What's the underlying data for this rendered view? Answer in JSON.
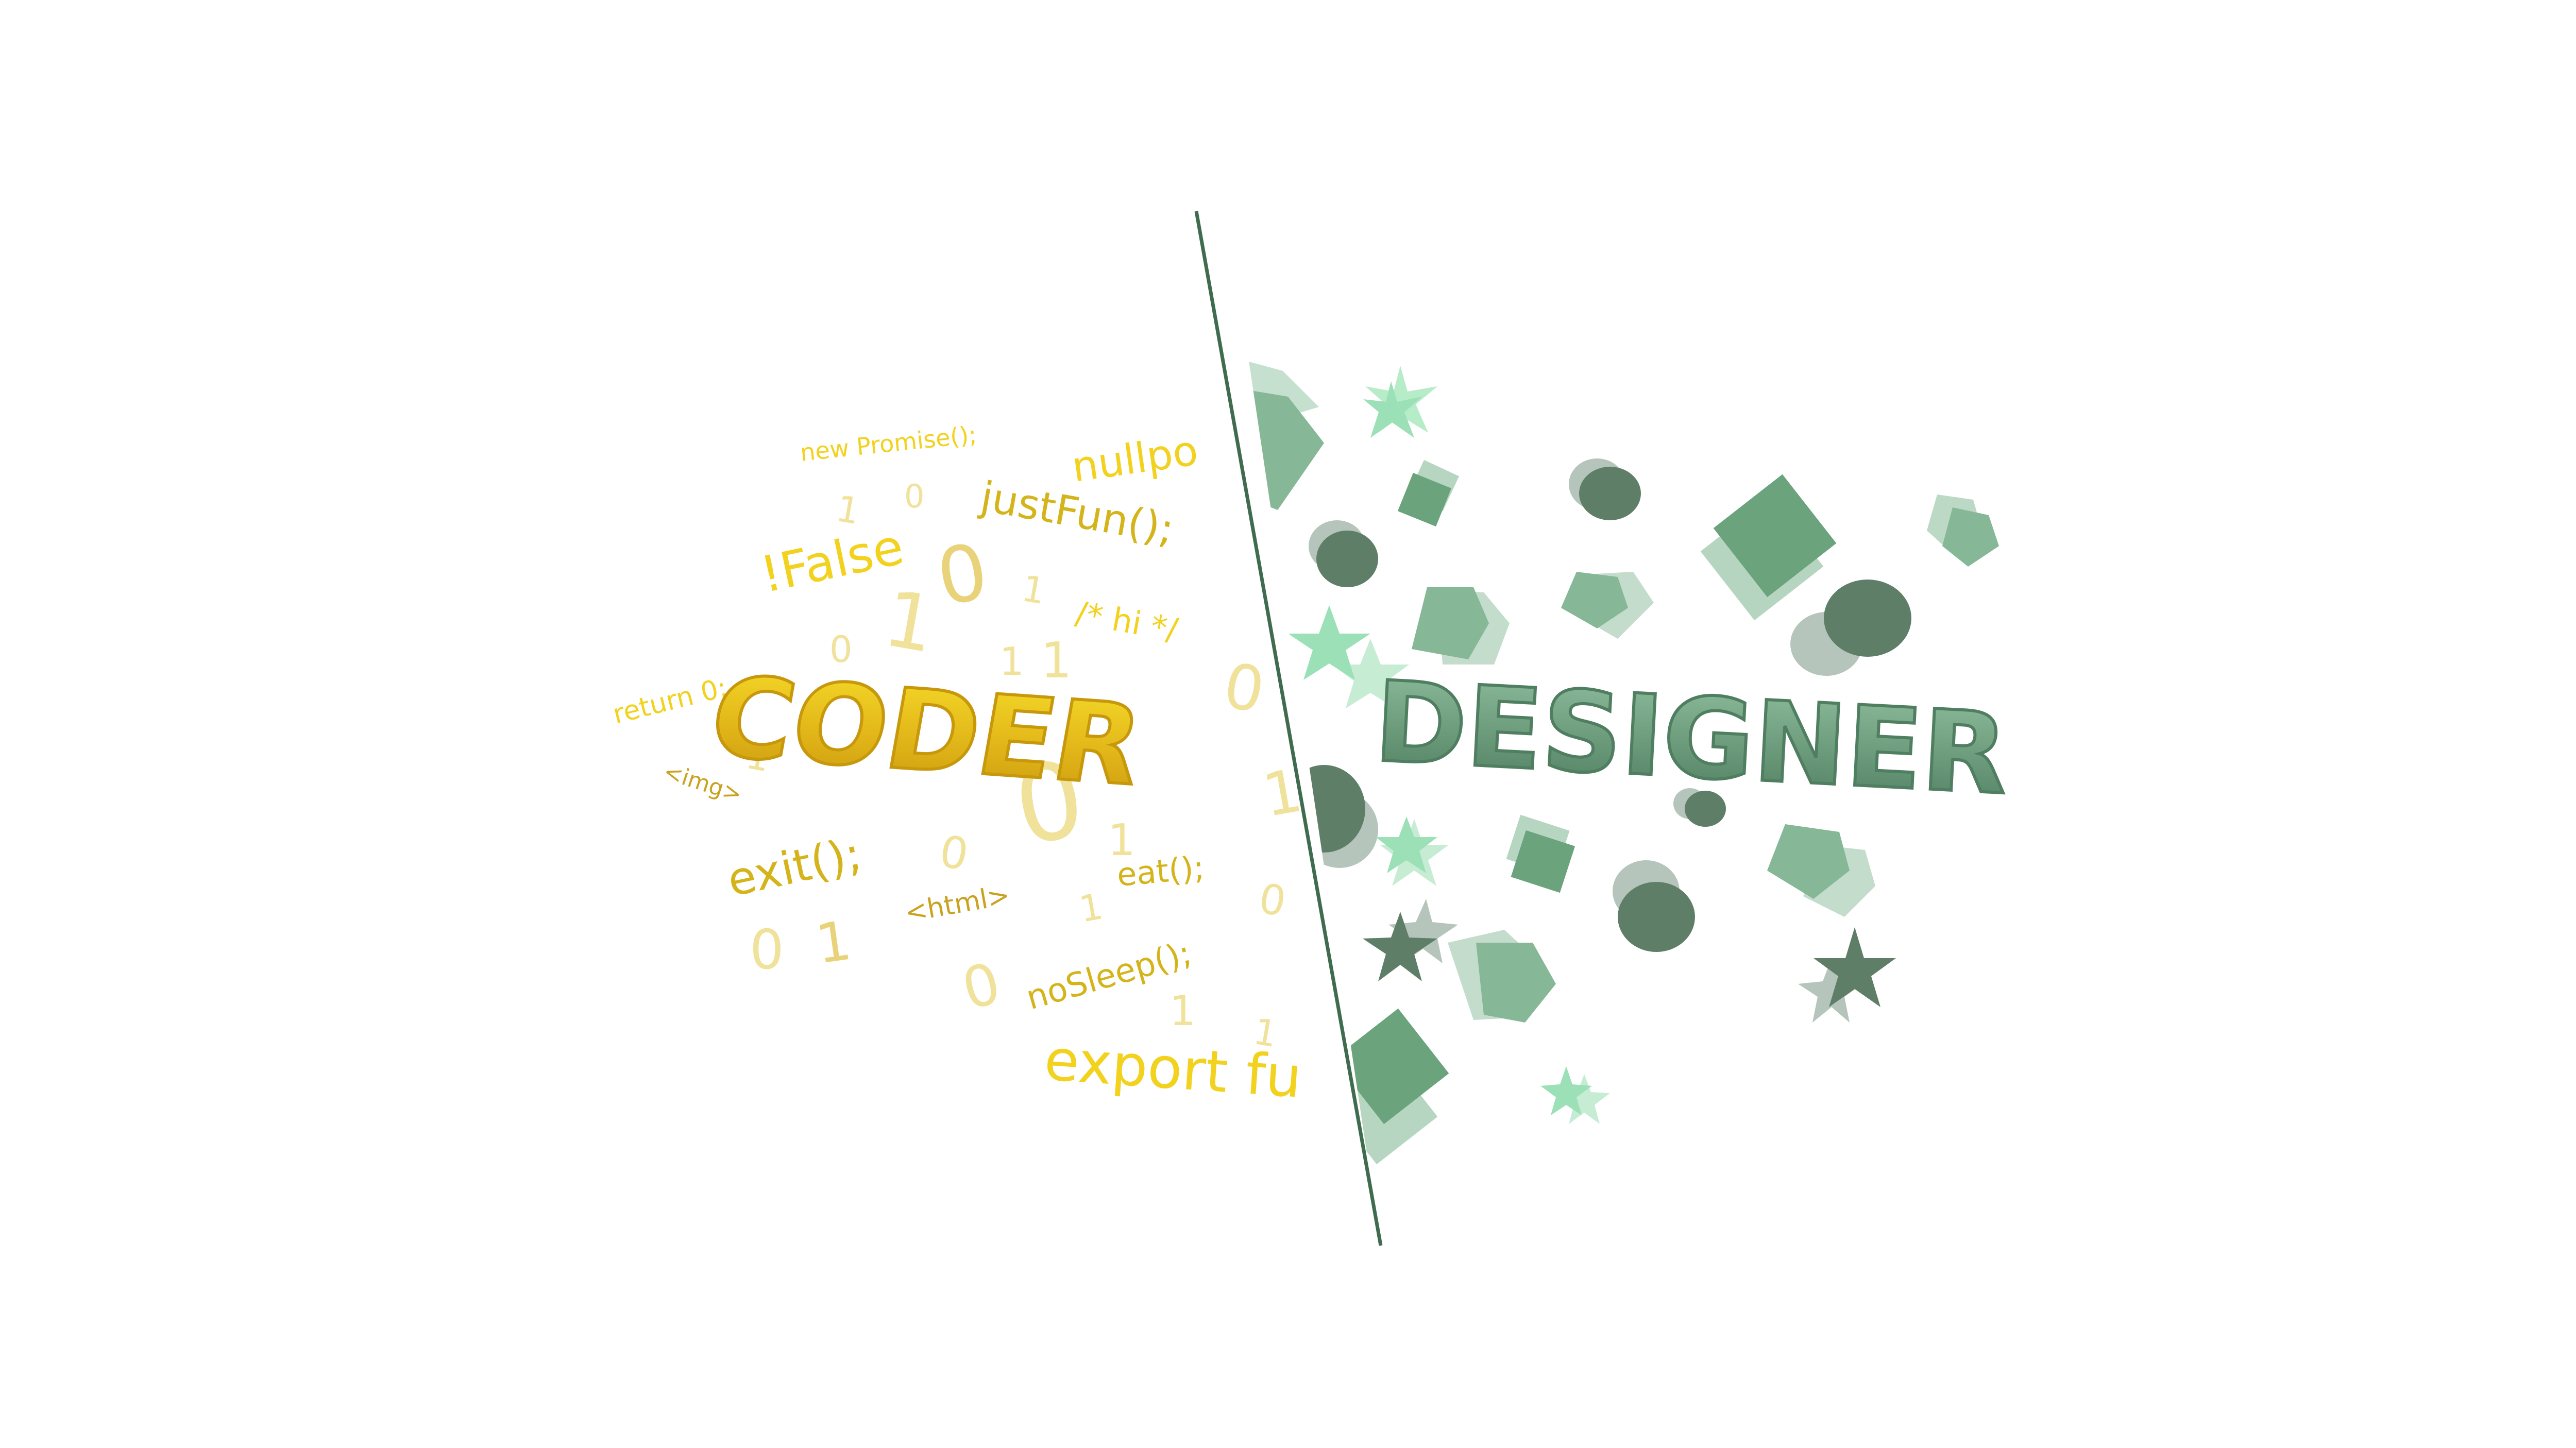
{
  "titles": {
    "coder": "CODER",
    "designer": "DESIGNER"
  },
  "code_snippets": {
    "new_promise": "new Promise();",
    "nullpo": "nullpo",
    "just_fun": "justFun();",
    "false": "!False",
    "hi_comment": "/* hi */",
    "return_zero": "return 0;",
    "img": "<img>",
    "exit": "exit();",
    "html": "<html>",
    "eat": "eat();",
    "no_sleep": "noSleep();",
    "export_fu": "export fu"
  },
  "digits": [
    "1",
    "0",
    "1",
    "0",
    "1",
    "0",
    "1",
    "1",
    "0",
    "1",
    "1",
    "0",
    "1",
    "0",
    "1",
    "0",
    "1",
    "0",
    "1",
    "1"
  ],
  "colors": {
    "coder_gold": "#e6c21a",
    "coder_gold_dark": "#c9a320",
    "designer_green": "#6a9c7c",
    "designer_dark": "#5e7e68",
    "designer_light": "#9fdcb5",
    "divider": "#3f6b4f",
    "background": "#ffffff"
  }
}
